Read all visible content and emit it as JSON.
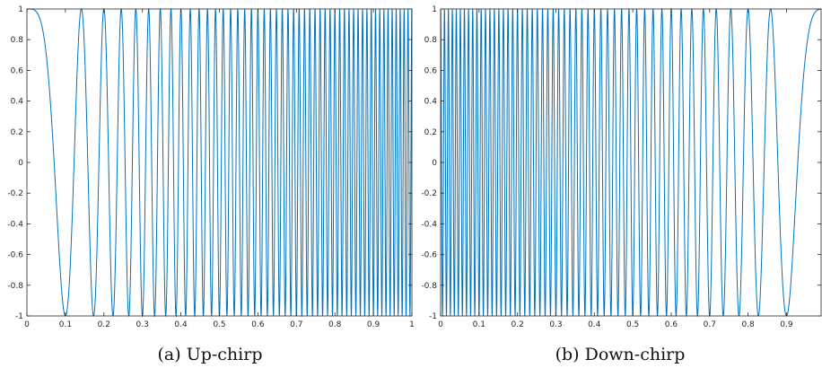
{
  "line_color": "#0072BD",
  "captions": [
    "(a)  Up-chirp",
    "(b)  Down-chirp"
  ],
  "chart_data": [
    {
      "type": "line",
      "series_function": "cos(2*pi*(f0*t + (f1-f0)/(2*T)*t^2))",
      "params": {
        "f0": 0,
        "f1": 100,
        "T": 1
      },
      "xlim": [
        0,
        1
      ],
      "ylim": [
        -1,
        1
      ],
      "xticks": [
        0,
        0.1,
        0.2,
        0.3,
        0.4,
        0.5,
        0.6,
        0.7,
        0.8,
        0.9,
        1
      ],
      "yticks": [
        -1,
        -0.8,
        -0.6,
        -0.4,
        -0.2,
        0,
        0.2,
        0.4,
        0.6,
        0.8,
        1
      ],
      "xticklabels": [
        "0",
        "0.1",
        "0.2",
        "0.3",
        "0.4",
        "0.5",
        "0.6",
        "0.7",
        "0.8",
        "0.9",
        "1"
      ],
      "yticklabels": [
        "-1",
        "-0.8",
        "-0.6",
        "-0.4",
        "-0.2",
        "0",
        "0.2",
        "0.4",
        "0.6",
        "0.8",
        "1"
      ],
      "grid": false,
      "caption": "(a)  Up-chirp"
    },
    {
      "type": "line",
      "series_function": "cos(2*pi*(f0*s + (f1-f0)/(2*T)*s^2)), s = T - t",
      "params": {
        "f0": 0,
        "f1": 100,
        "T": 1
      },
      "xlim": [
        0,
        0.99
      ],
      "ylim": [
        -1,
        1
      ],
      "xticks": [
        0,
        0.1,
        0.2,
        0.3,
        0.4,
        0.5,
        0.6,
        0.7,
        0.8,
        0.9
      ],
      "yticks": [
        -1,
        -0.8,
        -0.6,
        -0.4,
        -0.2,
        0,
        0.2,
        0.4,
        0.6,
        0.8,
        1
      ],
      "xticklabels": [
        "0",
        "0.1",
        "0.2",
        "0.3",
        "0.4",
        "0.5",
        "0.6",
        "0.7",
        "0.8",
        "0.9"
      ],
      "yticklabels": [
        "-1",
        "-0.8",
        "-0.6",
        "-0.4",
        "-0.2",
        "0",
        "0.2",
        "0.4",
        "0.6",
        "0.8",
        "1"
      ],
      "grid": false,
      "caption": "(b)  Down-chirp"
    }
  ]
}
